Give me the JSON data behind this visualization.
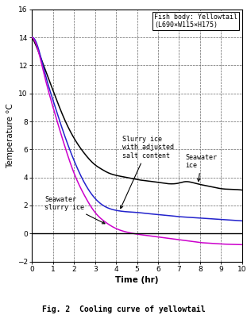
{
  "title": "Fig. 2  Cooling curve of yellowtail",
  "annotation_title": "Fish body: Yellowtail\n(L690×W115×H175)",
  "xlabel": "Time (hr)",
  "ylabel": "Temperature °C",
  "xlim": [
    0,
    10
  ],
  "ylim": [
    -2,
    16
  ],
  "xticks": [
    0,
    1,
    2,
    3,
    4,
    5,
    6,
    7,
    8,
    9,
    10
  ],
  "yticks": [
    -2,
    0,
    2,
    4,
    6,
    8,
    10,
    12,
    14,
    16
  ],
  "background_color": "#ffffff",
  "seawater_ice_color": "#000000",
  "slurry_ice_adjusted_color": "#2222cc",
  "seawater_slurry_color": "#cc00cc",
  "seawater_ice": {
    "x": [
      0,
      0.3,
      0.6,
      1.0,
      1.5,
      2.0,
      2.5,
      3.0,
      3.3,
      3.6,
      4.0,
      4.5,
      5.0,
      5.5,
      6.0,
      6.5,
      7.0,
      7.3,
      7.6,
      8.0,
      8.5,
      9.0,
      9.5,
      10.0
    ],
    "y": [
      14.0,
      13.0,
      11.8,
      10.2,
      8.3,
      6.8,
      5.7,
      4.9,
      4.6,
      4.35,
      4.15,
      4.0,
      3.85,
      3.75,
      3.65,
      3.55,
      3.6,
      3.7,
      3.65,
      3.5,
      3.35,
      3.2,
      3.15,
      3.1
    ]
  },
  "slurry_ice_adjusted": {
    "x": [
      0,
      0.3,
      0.6,
      1.0,
      1.5,
      2.0,
      2.5,
      3.0,
      3.5,
      4.0,
      4.5,
      5.0,
      5.5,
      6.0,
      6.5,
      7.0,
      7.5,
      8.0,
      8.5,
      9.0,
      9.5,
      10.0
    ],
    "y": [
      14.0,
      13.2,
      11.5,
      9.5,
      7.2,
      5.2,
      3.6,
      2.5,
      1.9,
      1.65,
      1.55,
      1.5,
      1.42,
      1.35,
      1.28,
      1.2,
      1.15,
      1.1,
      1.05,
      1.0,
      0.95,
      0.9
    ]
  },
  "seawater_slurry": {
    "x": [
      0,
      0.3,
      0.6,
      1.0,
      1.5,
      2.0,
      2.5,
      3.0,
      3.5,
      4.0,
      4.5,
      5.0,
      5.5,
      6.0,
      6.5,
      7.0,
      7.5,
      8.0,
      8.5,
      9.0,
      9.5,
      10.0
    ],
    "y": [
      14.0,
      13.0,
      11.2,
      9.0,
      6.5,
      4.3,
      2.7,
      1.5,
      0.8,
      0.35,
      0.1,
      -0.05,
      -0.15,
      -0.25,
      -0.35,
      -0.45,
      -0.55,
      -0.65,
      -0.7,
      -0.75,
      -0.78,
      -0.8
    ]
  },
  "label_seawater_ice": "Seawater\nice",
  "label_slurry_adjusted": "Slurry ice\nwith adjusted\nsalt content",
  "label_seawater_slurry": "Seawater\nslurry ice",
  "figsize": [
    3.11,
    3.97
  ],
  "dpi": 100
}
